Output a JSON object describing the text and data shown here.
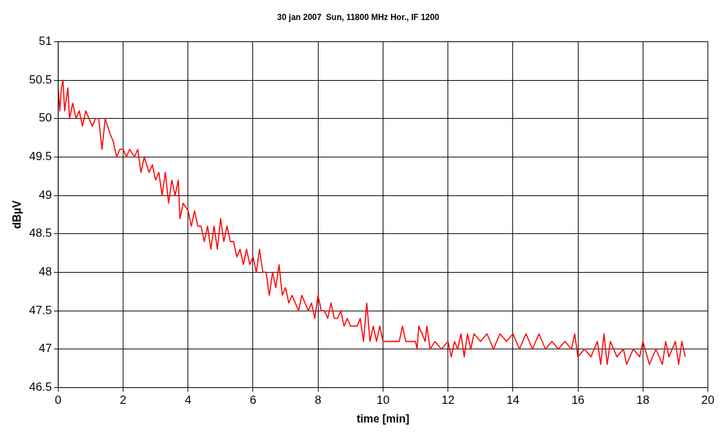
{
  "chart_data": {
    "type": "line",
    "title": "30 jan 2007  Sun, 11800 MHz Hor., IF 1200",
    "xlabel": "time [min]",
    "ylabel": "dBµV",
    "xlim": [
      0,
      20
    ],
    "xticks": [
      0,
      2,
      4,
      6,
      8,
      10,
      12,
      14,
      16,
      18,
      20
    ],
    "ylim": [
      46.5,
      51
    ],
    "yticks": [
      46.5,
      47,
      47.5,
      48,
      48.5,
      49,
      49.5,
      50,
      50.5,
      51
    ],
    "grid": true,
    "legend": false,
    "marker": "none",
    "line_style": "solid",
    "series": [
      {
        "color": "#ff0000",
        "x": [
          0,
          0.05,
          0.1,
          0.15,
          0.2,
          0.3,
          0.35,
          0.45,
          0.55,
          0.65,
          0.75,
          0.85,
          0.95,
          1.05,
          1.15,
          1.25,
          1.35,
          1.45,
          1.6,
          1.7,
          1.8,
          1.9,
          2.0,
          2.1,
          2.2,
          2.35,
          2.45,
          2.55,
          2.65,
          2.8,
          2.9,
          3.0,
          3.1,
          3.2,
          3.3,
          3.4,
          3.5,
          3.6,
          3.7,
          3.75,
          3.85,
          4.0,
          4.1,
          4.2,
          4.3,
          4.4,
          4.5,
          4.6,
          4.7,
          4.8,
          4.9,
          5.0,
          5.1,
          5.2,
          5.3,
          5.4,
          5.5,
          5.6,
          5.7,
          5.8,
          5.9,
          6.0,
          6.1,
          6.2,
          6.3,
          6.4,
          6.5,
          6.6,
          6.7,
          6.8,
          6.9,
          7.0,
          7.1,
          7.2,
          7.3,
          7.4,
          7.5,
          7.6,
          7.7,
          7.8,
          7.9,
          8.0,
          8.1,
          8.2,
          8.3,
          8.4,
          8.5,
          8.6,
          8.7,
          8.8,
          8.9,
          9.0,
          9.2,
          9.3,
          9.4,
          9.5,
          9.6,
          9.7,
          9.8,
          9.9,
          10.0,
          10.5,
          10.6,
          10.7,
          11.0,
          11.05,
          11.1,
          11.3,
          11.35,
          11.45,
          11.6,
          11.8,
          12.0,
          12.1,
          12.2,
          12.3,
          12.4,
          12.5,
          12.6,
          12.7,
          12.8,
          13.0,
          13.2,
          13.4,
          13.6,
          13.8,
          14.0,
          14.2,
          14.4,
          14.6,
          14.8,
          15.0,
          15.2,
          15.4,
          15.6,
          15.8,
          15.9,
          16.0,
          16.2,
          16.4,
          16.6,
          16.7,
          16.8,
          16.9,
          17.0,
          17.2,
          17.4,
          17.5,
          17.7,
          17.9,
          18.0,
          18.2,
          18.4,
          18.6,
          18.7,
          18.8,
          19.0,
          19.1,
          19.2,
          19.3
        ],
        "values": [
          50.4,
          50.1,
          50.4,
          50.5,
          50.1,
          50.4,
          50.0,
          50.2,
          50.0,
          50.1,
          49.9,
          50.1,
          50.0,
          49.9,
          50.0,
          50.0,
          49.6,
          50.0,
          49.8,
          49.7,
          49.5,
          49.6,
          49.6,
          49.5,
          49.6,
          49.5,
          49.6,
          49.3,
          49.5,
          49.3,
          49.4,
          49.2,
          49.3,
          49.0,
          49.3,
          48.9,
          49.2,
          49.0,
          49.2,
          48.7,
          48.9,
          48.8,
          48.6,
          48.8,
          48.6,
          48.6,
          48.4,
          48.6,
          48.3,
          48.6,
          48.3,
          48.7,
          48.4,
          48.6,
          48.4,
          48.4,
          48.2,
          48.3,
          48.1,
          48.3,
          48.1,
          48.2,
          48.0,
          48.3,
          48.0,
          48.0,
          47.7,
          48.0,
          47.8,
          48.1,
          47.7,
          47.8,
          47.6,
          47.7,
          47.6,
          47.5,
          47.7,
          47.6,
          47.5,
          47.6,
          47.4,
          47.7,
          47.5,
          47.5,
          47.4,
          47.6,
          47.4,
          47.4,
          47.5,
          47.3,
          47.4,
          47.3,
          47.3,
          47.4,
          47.1,
          47.6,
          47.1,
          47.3,
          47.1,
          47.3,
          47.1,
          47.1,
          47.3,
          47.1,
          47.1,
          47.0,
          47.3,
          47.1,
          47.3,
          47.0,
          47.1,
          47.0,
          47.1,
          46.9,
          47.1,
          47.0,
          47.2,
          46.9,
          47.2,
          47.0,
          47.2,
          47.1,
          47.2,
          47.0,
          47.2,
          47.1,
          47.2,
          47.0,
          47.2,
          47.0,
          47.2,
          47.0,
          47.1,
          47.0,
          47.1,
          47.0,
          47.2,
          46.9,
          47.0,
          46.9,
          47.1,
          46.8,
          47.2,
          46.8,
          47.1,
          46.9,
          47.0,
          46.8,
          47.0,
          46.9,
          47.1,
          46.8,
          47.0,
          46.8,
          47.1,
          46.9,
          47.1,
          46.8,
          47.1,
          46.9
        ]
      }
    ]
  }
}
